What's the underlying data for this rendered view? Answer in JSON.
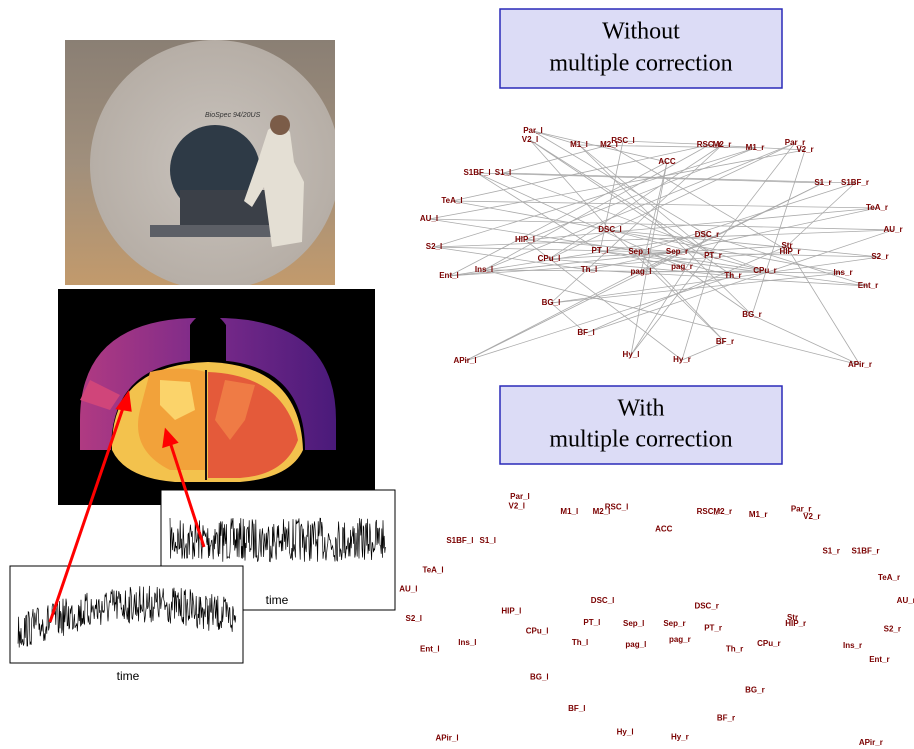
{
  "figure": {
    "networks": [
      {
        "title": [
          "Without",
          "multiple correction"
        ]
      },
      {
        "title": [
          "With",
          "multiple correction"
        ]
      }
    ],
    "time_series": {
      "axis_labels": [
        "time",
        "time"
      ]
    },
    "nodes": [
      "Par_l",
      "V2_l",
      "M1_l",
      "M2_l",
      "RSC_l",
      "RSC_r",
      "M2_r",
      "M1_r",
      "Par_r",
      "V2_r",
      "ACC",
      "S1BF_l",
      "S1_l",
      "S1_r",
      "S1BF_r",
      "TeA_l",
      "TeA_r",
      "AU_l",
      "AU_r",
      "HIP_l",
      "DSC_l",
      "DSC_r",
      "HIP_r",
      "Str",
      "S2_l",
      "S2_r",
      "Ent_l",
      "Ins_l",
      "CPu_l",
      "PT_l",
      "Sep_l",
      "Sep_r",
      "pag_r",
      "PT_r",
      "Th_l",
      "pag_l",
      "Th_r",
      "CPu_r",
      "Ins_r",
      "Ent_r",
      "BG_l",
      "BG_r",
      "BF_l",
      "BF_r",
      "Hy_l",
      "Hy_r",
      "APir_l",
      "APir_r"
    ]
  }
}
